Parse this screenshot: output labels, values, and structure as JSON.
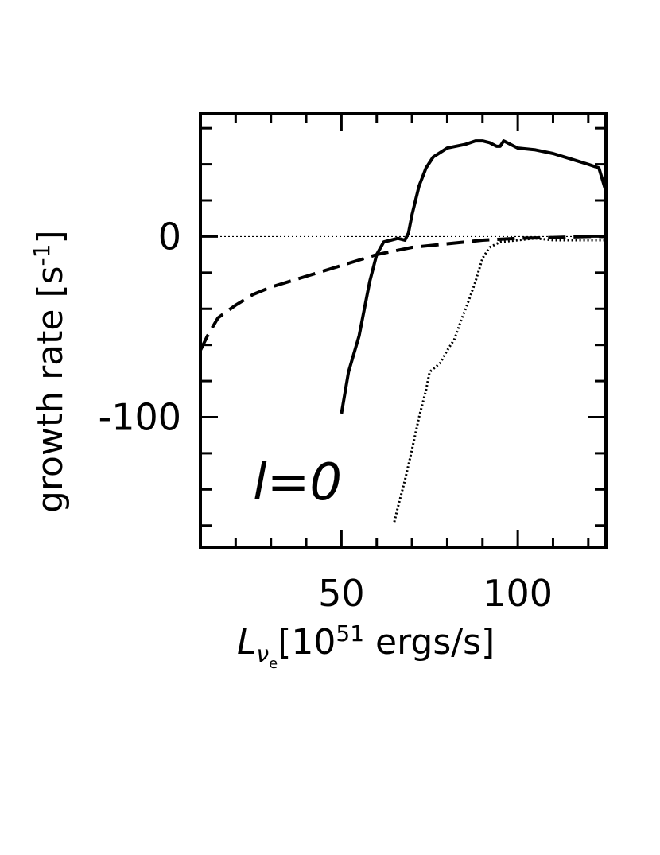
{
  "chart_data": {
    "type": "line",
    "panel_label": "l=0",
    "ylabel_text": "growth rate [s",
    "ylabel_sup": "-1",
    "ylabel_close": "]",
    "xlabel_main": "L",
    "xlabel_sub": "ν",
    "xlabel_subsub": "e",
    "xlabel_rest": "[10",
    "xlabel_sup": "51",
    "xlabel_unit": " ergs/s]",
    "xlim": [
      0,
      125
    ],
    "ylim": [
      -180,
      70
    ],
    "x_ticks": [
      50,
      100
    ],
    "y_ticks": [
      -100,
      0
    ],
    "x_tick_labels": [
      "50",
      "100"
    ],
    "y_tick_labels": [
      "-100",
      "0"
    ],
    "grid": false,
    "reference_line": {
      "y": 0,
      "style": "dotted"
    },
    "series": [
      {
        "style": "solid",
        "x": [
          50,
          52,
          55,
          58,
          60,
          62,
          64,
          66,
          68,
          69,
          70,
          72,
          74,
          76,
          80,
          85,
          88,
          90,
          92,
          94,
          95,
          96,
          98,
          100,
          105,
          110,
          115,
          120,
          123,
          125
        ],
        "y": [
          -98,
          -75,
          -55,
          -25,
          -10,
          -3,
          -2,
          -1,
          -2,
          2,
          12,
          28,
          38,
          44,
          49,
          51,
          53,
          53,
          52,
          50,
          50,
          53,
          51,
          49,
          48,
          46,
          43,
          40,
          38,
          25
        ]
      },
      {
        "style": "dashed",
        "x": [
          10,
          12,
          15,
          20,
          25,
          30,
          40,
          50,
          60,
          70,
          80,
          90,
          100,
          110,
          120,
          125
        ],
        "y": [
          -63,
          -55,
          -45,
          -38,
          -32,
          -28,
          -22,
          -16,
          -10,
          -6,
          -4,
          -2,
          -1,
          -0.5,
          0,
          0
        ]
      },
      {
        "style": "dotted",
        "x": [
          65,
          66,
          68,
          70,
          72,
          74,
          75,
          78,
          80,
          82,
          84,
          86,
          88,
          90,
          92,
          95,
          100,
          105,
          110,
          115,
          120,
          125
        ],
        "y": [
          -158,
          -150,
          -135,
          -118,
          -100,
          -85,
          -75,
          -70,
          -63,
          -57,
          -46,
          -36,
          -25,
          -12,
          -6,
          -3,
          -2,
          -1,
          -2,
          -2,
          -2,
          -2
        ]
      }
    ]
  }
}
